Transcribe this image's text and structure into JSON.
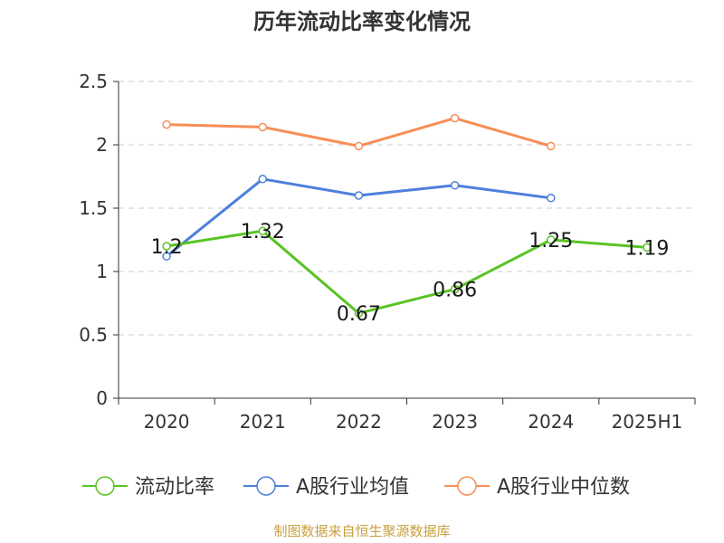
{
  "chart_data": {
    "type": "line",
    "title": "历年流动比率变化情况",
    "categories": [
      "2020",
      "2021",
      "2022",
      "2023",
      "2024",
      "2025H1"
    ],
    "y_ticks": [
      "0",
      "0.5",
      "1",
      "1.5",
      "2",
      "2.5"
    ],
    "ylim": [
      0,
      2.5
    ],
    "grid": true,
    "legend_position": "bottom",
    "series": [
      {
        "name": "流动比率",
        "color": "#5ac325",
        "values": [
          1.2,
          1.32,
          0.67,
          0.86,
          1.25,
          1.19
        ],
        "labels": [
          "1.2",
          "1.32",
          "0.67",
          "0.86",
          "1.25",
          "1.19"
        ]
      },
      {
        "name": "A股行业均值",
        "color": "#4d7fdc",
        "values": [
          1.12,
          1.73,
          1.6,
          1.68,
          1.58,
          null
        ]
      },
      {
        "name": "A股行业中位数",
        "color": "#f78e56",
        "values": [
          2.16,
          2.14,
          1.99,
          2.21,
          1.99,
          null
        ]
      }
    ]
  },
  "source": {
    "text": "制图数据来自恒生聚源数据库",
    "color": "#c8a040"
  }
}
